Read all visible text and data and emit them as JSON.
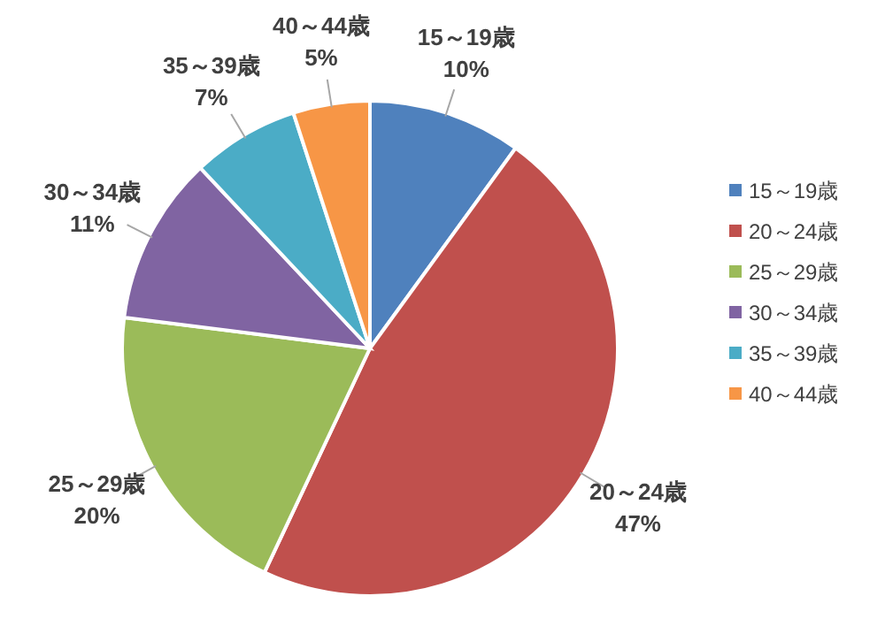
{
  "chart_data": {
    "type": "pie",
    "categories": [
      "15～19歳",
      "20～24歳",
      "25～29歳",
      "30～34歳",
      "35～39歳",
      "40～44歳"
    ],
    "values": [
      10,
      47,
      20,
      11,
      7,
      5
    ],
    "colors": [
      "#4f81bd",
      "#c0504d",
      "#9bbb59",
      "#8064a2",
      "#4bacc6",
      "#f79646"
    ],
    "value_labels": [
      "10%",
      "47%",
      "20%",
      "11%",
      "7%",
      "5%"
    ],
    "legend": "right"
  }
}
